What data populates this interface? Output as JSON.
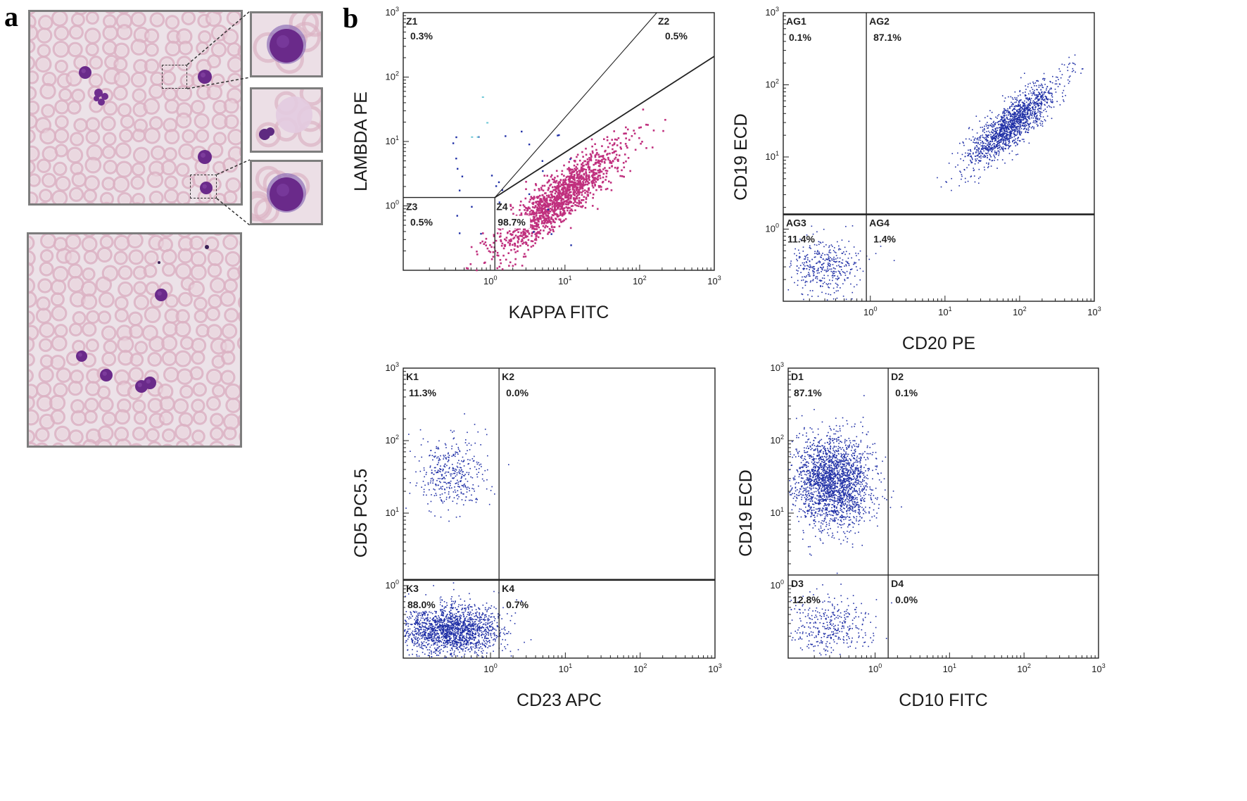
{
  "panel_labels": {
    "a": "a",
    "b": "b"
  },
  "colors": {
    "event": "#1f2fa6",
    "event_z4": "#c0307e",
    "event_cyan": "#6cc7d6",
    "cell_nucleus": "#6a2a8a",
    "rbc": "#dcb2c3",
    "smear_bg": "#ece2e8"
  },
  "smear": {
    "top": {
      "description_icon": "blood-smear-image"
    },
    "bottom": {
      "description_icon": "blood-smear-image"
    },
    "insets": [
      "lymphocyte-closeup",
      "smudge-cell-closeup",
      "lymphocyte-closeup"
    ]
  },
  "chart_data": [
    {
      "type": "scatter",
      "xlabel": "KAPPA FITC",
      "ylabel": "LAMBDA PE",
      "scale": "log",
      "ticks": [
        "10^0",
        "10^1",
        "10^2",
        "10^3"
      ],
      "xlim": [
        0.1,
        1000
      ],
      "ylim": [
        0.1,
        1000
      ],
      "gates": [
        {
          "name": "Z1",
          "percent": "0.3%"
        },
        {
          "name": "Z2",
          "percent": "0.5%"
        },
        {
          "name": "Z3",
          "percent": "0.5%"
        },
        {
          "name": "Z4",
          "percent": "98.7%"
        }
      ],
      "populations": [
        {
          "region": "Z4",
          "center": [
            8,
            1.3
          ],
          "spread": [
            0.45,
            0.45
          ],
          "count": 1400,
          "color": "#c0307e"
        }
      ]
    },
    {
      "type": "scatter",
      "xlabel": "CD20 PE",
      "ylabel": "CD19 ECD",
      "scale": "log",
      "ticks": [
        "10^0",
        "10^1",
        "10^2",
        "10^3"
      ],
      "xlim": [
        0.1,
        1000
      ],
      "ylim": [
        0.1,
        1000
      ],
      "gate_lines": {
        "x": 0.9,
        "y": 1.6
      },
      "gates": [
        {
          "name": "AG1",
          "percent": "0.1%"
        },
        {
          "name": "AG2",
          "percent": "87.1%"
        },
        {
          "name": "AG3",
          "percent": "11.4%"
        },
        {
          "name": "AG4",
          "percent": "1.4%"
        }
      ],
      "populations": [
        {
          "region": "AG2",
          "center": [
            80,
            30
          ],
          "spread": [
            0.35,
            0.3
          ],
          "count": 1600,
          "color": "#1f2fa6"
        },
        {
          "region": "AG3",
          "center": [
            0.3,
            0.3
          ],
          "spread": [
            0.22,
            0.2
          ],
          "count": 380,
          "color": "#1f2fa6"
        }
      ]
    },
    {
      "type": "scatter",
      "xlabel": "CD23 APC",
      "ylabel": "CD5 PC5.5",
      "scale": "log",
      "ticks": [
        "10^0",
        "10^1",
        "10^2",
        "10^3"
      ],
      "xlim": [
        0.1,
        1000
      ],
      "ylim": [
        0.1,
        1000
      ],
      "gate_lines": {
        "x": 1.3,
        "y": 1.2
      },
      "gates": [
        {
          "name": "K1",
          "percent": "11.3%"
        },
        {
          "name": "K2",
          "percent": "0.0%"
        },
        {
          "name": "K3",
          "percent": "88.0%"
        },
        {
          "name": "K4",
          "percent": "0.7%"
        }
      ],
      "populations": [
        {
          "region": "K1",
          "center": [
            0.35,
            35
          ],
          "spread": [
            0.2,
            0.25
          ],
          "count": 380,
          "color": "#1f2fa6"
        },
        {
          "region": "K3",
          "center": [
            0.35,
            0.25
          ],
          "spread": [
            0.28,
            0.18
          ],
          "count": 1800,
          "color": "#1f2fa6"
        }
      ]
    },
    {
      "type": "scatter",
      "xlabel": "CD10 FITC",
      "ylabel": "CD19 ECD",
      "scale": "log",
      "ticks": [
        "10^0",
        "10^1",
        "10^2",
        "10^3"
      ],
      "xlim": [
        0.1,
        1000
      ],
      "ylim": [
        0.1,
        1000
      ],
      "gate_lines": {
        "x": 1.5,
        "y": 1.4
      },
      "gates": [
        {
          "name": "D1",
          "percent": "87.1%"
        },
        {
          "name": "D2",
          "percent": "0.1%"
        },
        {
          "name": "D3",
          "percent": "12.8%"
        },
        {
          "name": "D4",
          "percent": "0.0%"
        }
      ],
      "populations": [
        {
          "region": "D1",
          "center": [
            0.32,
            28
          ],
          "spread": [
            0.22,
            0.32
          ],
          "count": 2200,
          "color": "#1f2fa6"
        },
        {
          "region": "D3",
          "center": [
            0.3,
            0.28
          ],
          "spread": [
            0.22,
            0.2
          ],
          "count": 350,
          "color": "#1f2fa6"
        }
      ]
    }
  ]
}
